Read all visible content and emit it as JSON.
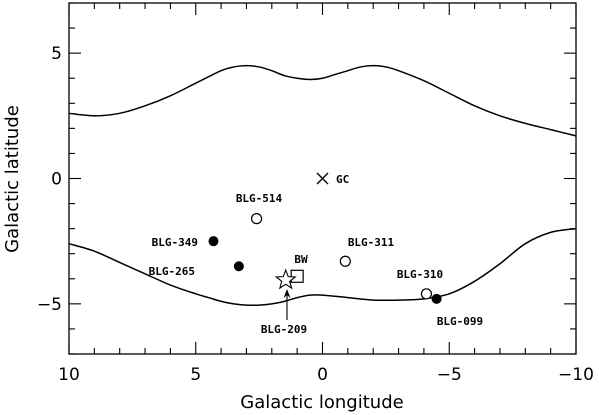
{
  "chart_data": {
    "type": "scatter",
    "xlabel": "Galactic longitude",
    "ylabel": "Galactic latitude",
    "xlim": [
      10,
      -10
    ],
    "ylim": [
      -7,
      7
    ],
    "xticks": [
      10,
      5,
      0,
      -5,
      -10
    ],
    "yticks": [
      5,
      0,
      -5
    ],
    "grid": false,
    "curves": [
      {
        "x": [
          10,
          9,
          8,
          7,
          6,
          5,
          4,
          3.5,
          3,
          2.5,
          2,
          1.5,
          1,
          0.5,
          0,
          -0.5,
          -1,
          -1.5,
          -2,
          -2.5,
          -3,
          -4,
          -5,
          -6,
          -7,
          -8,
          -9,
          -10
        ],
        "y": [
          2.6,
          2.5,
          2.6,
          2.9,
          3.3,
          3.8,
          4.3,
          4.45,
          4.5,
          4.45,
          4.3,
          4.1,
          4.0,
          3.95,
          4.0,
          4.15,
          4.3,
          4.45,
          4.5,
          4.45,
          4.3,
          3.9,
          3.4,
          2.9,
          2.5,
          2.2,
          1.95,
          1.7
        ]
      },
      {
        "x": [
          10,
          9,
          8,
          7,
          6,
          5,
          4.5,
          4,
          3.5,
          3,
          2.5,
          2,
          1.5,
          1,
          0.5,
          0,
          -1,
          -2,
          -3,
          -4,
          -5,
          -6,
          -7,
          -8,
          -9,
          -10
        ],
        "y": [
          -2.6,
          -2.9,
          -3.35,
          -3.8,
          -4.25,
          -4.6,
          -4.75,
          -4.9,
          -5.0,
          -5.05,
          -5.05,
          -5.0,
          -4.9,
          -4.75,
          -4.65,
          -4.65,
          -4.75,
          -4.85,
          -4.85,
          -4.8,
          -4.6,
          -4.1,
          -3.4,
          -2.6,
          -2.15,
          -2.0
        ]
      }
    ],
    "points": [
      {
        "name": "BLG-514",
        "x": 2.6,
        "y": -1.6,
        "marker": "open-circle"
      },
      {
        "name": "BLG-349",
        "x": 4.3,
        "y": -2.5,
        "marker": "filled-circle"
      },
      {
        "name": "BLG-265",
        "x": 3.3,
        "y": -3.5,
        "marker": "filled-circle"
      },
      {
        "name": "BLG-311",
        "x": -0.9,
        "y": -3.3,
        "marker": "open-circle"
      },
      {
        "name": "BLG-310",
        "x": -4.1,
        "y": -4.6,
        "marker": "open-circle"
      },
      {
        "name": "BLG-099",
        "x": -4.5,
        "y": -4.8,
        "marker": "filled-circle"
      },
      {
        "name": "BW",
        "x": 1.0,
        "y": -3.9,
        "marker": "open-square"
      },
      {
        "name": "BLG-209",
        "x": 1.45,
        "y": -4.05,
        "marker": "open-star"
      },
      {
        "name": "GC",
        "x": 0.0,
        "y": 0.0,
        "marker": "cross"
      }
    ],
    "annotations": [
      {
        "text": "BLG-514"
      },
      {
        "text": "BLG-349"
      },
      {
        "text": "BLG-265"
      },
      {
        "text": "BLG-311"
      },
      {
        "text": "BLG-310"
      },
      {
        "text": "BLG-099"
      },
      {
        "text": "BW"
      },
      {
        "text": "BLG-209"
      },
      {
        "text": "GC"
      }
    ]
  }
}
